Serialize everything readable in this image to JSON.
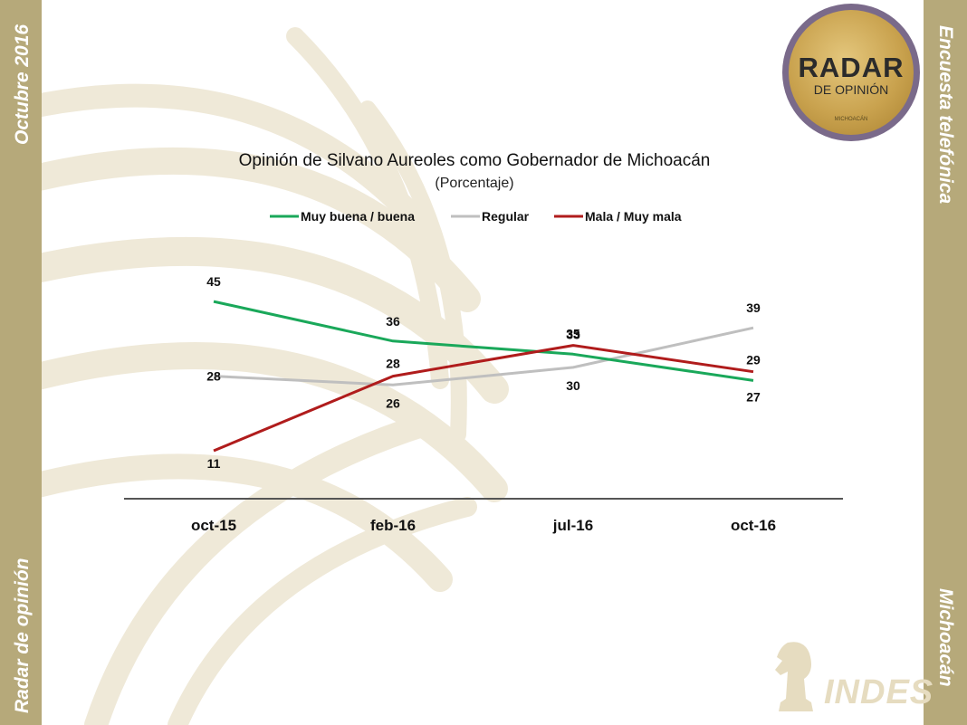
{
  "side": {
    "left_top": "Octubre 2016",
    "left_bottom": "Radar de opinión",
    "right_top": "Encuesta telefónica",
    "right_bottom": "Michoacán"
  },
  "logo": {
    "title": "RADAR",
    "subtitle": "DE OPINIÓN",
    "small": "MICHOACÁN"
  },
  "brand": "INDES",
  "colors": {
    "sidebar": "#b6a97a",
    "green": "#1aa85a",
    "gray": "#bfbfbf",
    "red": "#b01c1c"
  },
  "chart_data": {
    "type": "line",
    "title": "Opinión de Silvano Aureoles como Gobernador de Michoacán",
    "subtitle": "(Porcentaje)",
    "categories": [
      "oct-15",
      "feb-16",
      "jul-16",
      "oct-16"
    ],
    "series": [
      {
        "name": "Muy buena / buena",
        "color": "#1aa85a",
        "values": [
          45,
          36,
          33,
          27
        ]
      },
      {
        "name": "Regular",
        "color": "#bfbfbf",
        "values": [
          28,
          26,
          30,
          39
        ]
      },
      {
        "name": "Mala / Muy mala",
        "color": "#b01c1c",
        "values": [
          11,
          28,
          35,
          29
        ]
      }
    ],
    "legend": "top",
    "grid": false
  }
}
